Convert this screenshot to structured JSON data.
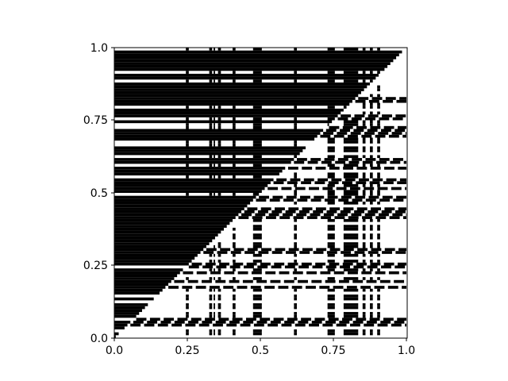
{
  "chart_data": {
    "type": "heatmap",
    "title": "",
    "xlabel": "",
    "ylabel": "",
    "xlim": [
      0,
      1
    ],
    "ylim": [
      0,
      1
    ],
    "grid": false,
    "legend": "none",
    "colormap": {
      "filled": "#000000",
      "empty": "#ffffff"
    },
    "x_ticks": [
      {
        "value": 0.0,
        "label": "0.0"
      },
      {
        "value": 0.25,
        "label": "0.25"
      },
      {
        "value": 0.5,
        "label": "0.5"
      },
      {
        "value": 0.75,
        "label": "0.75"
      },
      {
        "value": 1.0,
        "label": "1.0"
      }
    ],
    "y_ticks": [
      {
        "value": 0.0,
        "label": "0.0"
      },
      {
        "value": 0.25,
        "label": "0.25"
      },
      {
        "value": 0.5,
        "label": "0.5"
      },
      {
        "value": 0.75,
        "label": "0.75"
      },
      {
        "value": 1.0,
        "label": "1.0"
      }
    ],
    "grid_size": 100,
    "upper_triangle_filled_rows": [
      [
        0.0,
        0.015
      ],
      [
        0.03,
        0.045
      ],
      [
        0.05,
        0.06
      ],
      [
        0.07,
        0.078
      ],
      [
        0.085,
        0.095
      ],
      [
        0.1,
        0.12
      ],
      [
        0.13,
        0.145
      ],
      [
        0.15,
        0.165
      ],
      [
        0.175,
        0.185
      ],
      [
        0.19,
        0.2
      ],
      [
        0.205,
        0.225
      ],
      [
        0.23,
        0.24
      ],
      [
        0.25,
        0.26
      ],
      [
        0.265,
        0.28
      ],
      [
        0.285,
        0.3
      ],
      [
        0.305,
        0.315
      ],
      [
        0.318,
        0.385
      ],
      [
        0.395,
        0.405
      ],
      [
        0.41,
        0.44
      ],
      [
        0.445,
        0.47
      ],
      [
        0.475,
        0.49
      ],
      [
        0.5,
        0.52
      ],
      [
        0.525,
        0.545
      ],
      [
        0.56,
        0.585
      ],
      [
        0.6,
        0.62
      ],
      [
        0.63,
        0.66
      ],
      [
        0.68,
        0.72
      ],
      [
        0.74,
        0.75
      ],
      [
        0.76,
        0.79
      ],
      [
        0.8,
        0.83
      ],
      [
        0.835,
        0.86
      ],
      [
        0.865,
        0.88
      ],
      [
        0.89,
        0.91
      ],
      [
        0.92,
        0.95
      ],
      [
        0.955,
        0.965
      ],
      [
        0.97,
        0.985
      ]
    ],
    "vertical_band_columns": [
      [
        0.245,
        0.255
      ],
      [
        0.325,
        0.335
      ],
      [
        0.34,
        0.345
      ],
      [
        0.355,
        0.365
      ],
      [
        0.405,
        0.415
      ],
      [
        0.475,
        0.505
      ],
      [
        0.615,
        0.625
      ],
      [
        0.73,
        0.755
      ],
      [
        0.785,
        0.835
      ],
      [
        0.85,
        0.86
      ],
      [
        0.875,
        0.885
      ],
      [
        0.9,
        0.91
      ]
    ],
    "lower_triangle_dash_rows": [
      0.045,
      0.06,
      0.175,
      0.195,
      0.225,
      0.25,
      0.3,
      0.42,
      0.44,
      0.48,
      0.515,
      0.54,
      0.585,
      0.61,
      0.7,
      0.72,
      0.76,
      0.82
    ]
  }
}
